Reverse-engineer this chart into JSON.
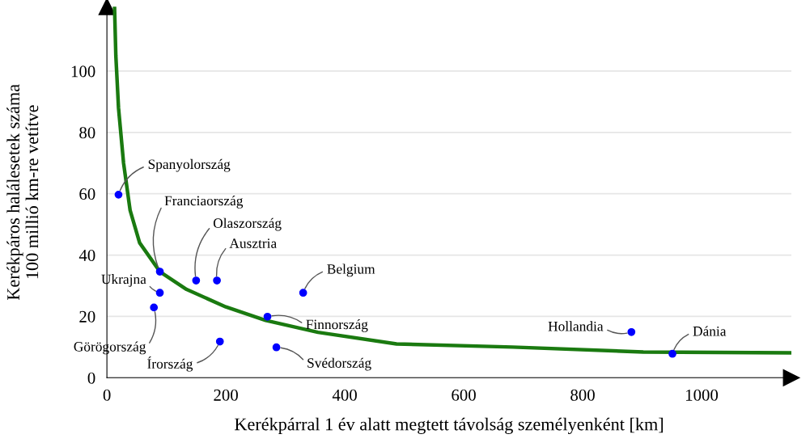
{
  "chart_data": {
    "type": "scatter",
    "xlabel": "Kerékpárral 1 év alatt megtett távolság személyenként [km]",
    "ylabel": "Kerékpáros halálesetek száma\n100 millió km-re vetítve",
    "series": [
      {
        "color": "#0000ff",
        "marker": "circle",
        "x": [
          19.5,
          89,
          150,
          185,
          330,
          89,
          79,
          270,
          190,
          285,
          882,
          951
        ],
        "values": [
          59.7,
          34.6,
          31.7,
          31.7,
          27.7,
          27.7,
          22.9,
          19.9,
          11.8,
          9.9,
          14.9,
          7.8
        ]
      },
      {
        "type": "line",
        "color": "#1a7a10",
        "marker": "none",
        "line_style": "solid",
        "x": [
          12.8,
          15,
          19.5,
          28,
          39,
          55,
          89,
          134,
          200,
          267,
          355,
          487,
          682,
          902,
          1151
        ],
        "values": [
          121,
          105,
          88,
          70,
          54.6,
          44,
          34.6,
          28.8,
          23.1,
          18.7,
          14.8,
          11,
          10,
          8.4,
          8.1
        ]
      }
    ],
    "annotations": [
      {
        "text": "Spanyolország",
        "x": 19.5,
        "y": 59.7
      },
      {
        "text": "Franciaország",
        "x": 89,
        "y": 34.6
      },
      {
        "text": "Olaszország",
        "x": 150,
        "y": 31.7
      },
      {
        "text": "Ausztria",
        "x": 185,
        "y": 31.7
      },
      {
        "text": "Belgium",
        "x": 330,
        "y": 27.7
      },
      {
        "text": "Ukrajna",
        "x": 89,
        "y": 27.7
      },
      {
        "text": "Görögország",
        "x": 79,
        "y": 22.9
      },
      {
        "text": "Finnország",
        "x": 270,
        "y": 19.9
      },
      {
        "text": "Írország",
        "x": 190,
        "y": 11.8
      },
      {
        "text": "Svédország",
        "x": 285,
        "y": 9.9
      },
      {
        "text": "Hollandia",
        "x": 882,
        "y": 14.9
      },
      {
        "text": "Dánia",
        "x": 951,
        "y": 7.8
      }
    ],
    "xlim": [
      0,
      1151
    ],
    "ylim": [
      0,
      121
    ],
    "xticks": [
      0,
      200,
      400,
      600,
      800,
      1000
    ],
    "yticks": [
      0,
      20,
      40,
      60,
      80,
      100
    ],
    "grid": "y",
    "legend": false
  }
}
